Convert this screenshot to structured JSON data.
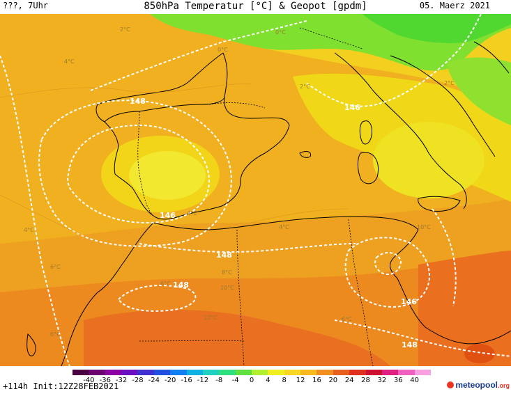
{
  "header": {
    "left": "???, 7Uhr",
    "title": "850hPa Temperatur [°C] & Geopot [gpdm]",
    "date": "05. Maerz 2021"
  },
  "map": {
    "isoline_labels": [
      "148",
      "146",
      "146",
      "148",
      "148",
      "146",
      "148"
    ],
    "temp_labels": [
      "2°C",
      "0°C",
      "0°C",
      "4°C",
      "2°C",
      "2°C",
      "4°C",
      "4°C",
      "6°C",
      "4°C",
      "6°C",
      "8°C",
      "10°C",
      "6°C",
      "12°C",
      "6°C",
      "10°C"
    ]
  },
  "colorbar": {
    "ticks": [
      "-40",
      "-36",
      "-32",
      "-28",
      "-24",
      "-20",
      "-16",
      "-12",
      "-8",
      "-4",
      "0",
      "4",
      "8",
      "12",
      "16",
      "20",
      "24",
      "28",
      "32",
      "36",
      "40"
    ],
    "colors": [
      "#4a0040",
      "#6a0070",
      "#8a00a0",
      "#6a10c0",
      "#4030d0",
      "#2050e0",
      "#1080f0",
      "#10b0e0",
      "#20d0c0",
      "#30e080",
      "#60e040",
      "#b0f030",
      "#f0f020",
      "#f8d820",
      "#f8b820",
      "#f09020",
      "#e86020",
      "#e03020",
      "#d01030",
      "#e02080",
      "#f060c0",
      "#f8a0e0"
    ]
  },
  "footer": {
    "left": "+114h Init:12Z28FEB2021",
    "logo": "meteopool",
    "logo_tld": ".org"
  }
}
